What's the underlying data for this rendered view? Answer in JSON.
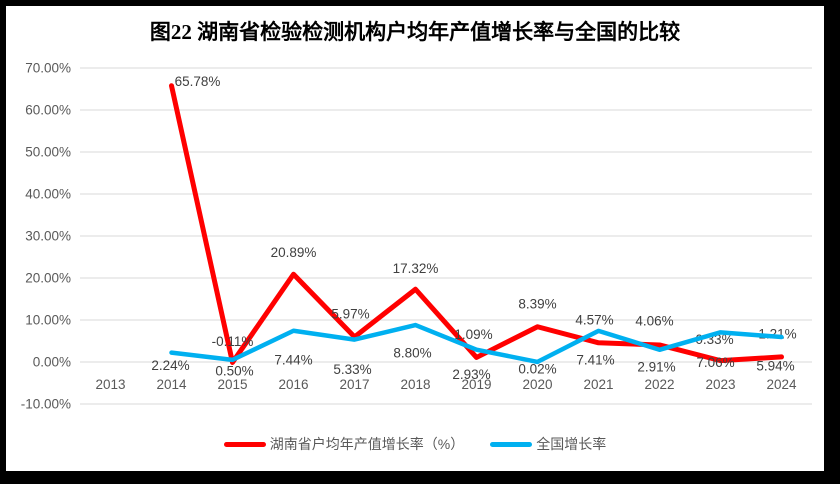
{
  "frame": {
    "border_color": "#000000"
  },
  "chart_data": {
    "type": "line",
    "title": "图22 湖南省检验检测机构户均年产值增长率与全国的比较",
    "x": [
      "2013",
      "2014",
      "2015",
      "2016",
      "2017",
      "2018",
      "2019",
      "2020",
      "2021",
      "2022",
      "2023",
      "2024"
    ],
    "y_ticks": [
      "70.00%",
      "60.00%",
      "50.00%",
      "40.00%",
      "30.00%",
      "20.00%",
      "10.00%",
      "0.00%",
      "-10.00%"
    ],
    "ylim": [
      -10,
      70
    ],
    "grid": true,
    "gridline_color": "#d9d9d9",
    "axis_text_color": "#595959",
    "data_label_color": "#404040",
    "legend_position": "bottom",
    "series": [
      {
        "name": "湖南省户均年产值增长率（%）",
        "color": "#FF0000",
        "label_side": "above",
        "values": [
          null,
          65.78,
          -0.11,
          20.89,
          5.97,
          17.32,
          1.09,
          8.39,
          4.57,
          4.06,
          0.33,
          1.21
        ],
        "labels": [
          null,
          "65.78%",
          "-0.11%",
          "20.89%",
          "5.97%",
          "17.32%",
          "1.09%",
          "8.39%",
          "4.57%",
          "4.06%",
          "0.33%",
          "1.21%"
        ],
        "label_offsets": [
          null,
          [
            26,
            -4
          ],
          [
            0,
            -21
          ],
          [
            0,
            -22
          ],
          [
            -4,
            -23
          ],
          [
            0,
            -21
          ],
          [
            -3,
            -23
          ],
          [
            0,
            -23
          ],
          [
            -4,
            -23
          ],
          [
            -5,
            -24
          ],
          [
            -6,
            -21
          ],
          [
            -4,
            -23
          ]
        ]
      },
      {
        "name": "全国增长率",
        "color": "#00B0F0",
        "label_side": "below",
        "values": [
          null,
          2.24,
          0.5,
          7.44,
          5.33,
          8.8,
          2.93,
          0.02,
          7.41,
          2.91,
          7.06,
          5.94
        ],
        "labels": [
          null,
          "2.24%",
          "0.50%",
          "7.44%",
          "5.33%",
          "8.80%",
          "2.93%",
          "0.02%",
          "7.41%",
          "2.91%",
          "7.06%",
          "5.94%"
        ],
        "label_offsets": [
          null,
          [
            -1,
            13
          ],
          [
            2,
            11
          ],
          [
            0,
            29
          ],
          [
            -2,
            30
          ],
          [
            -3,
            28
          ],
          [
            -5,
            25
          ],
          [
            0,
            7
          ],
          [
            -3,
            29
          ],
          [
            -3,
            17
          ],
          [
            -5,
            30
          ],
          [
            -6,
            29
          ]
        ]
      }
    ]
  }
}
